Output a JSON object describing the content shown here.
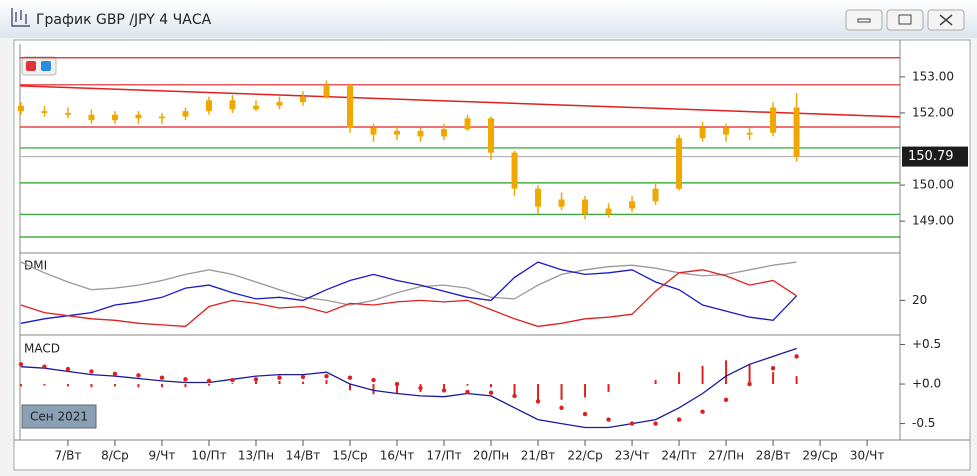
{
  "window": {
    "title": "График GBP /JPY  4 ЧАСА"
  },
  "chart_data": [
    {
      "type": "candlestick",
      "color": "#f0a800",
      "x": [
        -1,
        -0.5,
        0,
        0.5,
        1,
        1.5,
        2,
        2.5,
        3,
        3.5,
        4,
        4.5,
        5,
        5.5,
        6,
        6.5,
        7,
        7.5,
        8,
        8.5,
        9,
        9.5,
        10,
        10.5,
        11,
        11.5,
        12,
        12.5,
        13,
        13.5,
        14,
        14.5,
        15,
        15.5
      ],
      "open": [
        152.2,
        152.05,
        152.0,
        151.95,
        151.8,
        151.95,
        151.85,
        151.9,
        152.05,
        152.35,
        152.1,
        152.2,
        152.3,
        152.45,
        152.75,
        151.6,
        151.4,
        151.5,
        151.35,
        151.55,
        151.85,
        150.9,
        149.9,
        149.4,
        149.6,
        149.2,
        149.35,
        149.55,
        149.9,
        151.3,
        151.6,
        151.4,
        151.45,
        152.15
      ],
      "high": [
        152.3,
        152.2,
        152.15,
        152.1,
        152.05,
        152.05,
        152.0,
        152.15,
        152.45,
        152.5,
        152.35,
        152.45,
        152.6,
        152.9,
        152.8,
        151.7,
        151.65,
        151.6,
        151.7,
        151.95,
        151.9,
        150.95,
        150.0,
        149.8,
        149.7,
        149.5,
        149.7,
        150.1,
        151.4,
        151.75,
        151.7,
        151.6,
        152.3,
        152.55
      ],
      "low": [
        151.95,
        151.9,
        151.85,
        151.7,
        151.7,
        151.7,
        151.7,
        151.8,
        151.95,
        152.0,
        152.05,
        152.1,
        152.2,
        152.4,
        151.45,
        151.2,
        151.25,
        151.2,
        151.25,
        151.5,
        150.7,
        149.7,
        149.2,
        149.3,
        149.05,
        149.1,
        149.25,
        149.45,
        149.85,
        151.2,
        151.2,
        151.25,
        151.35,
        150.65
      ],
      "close": [
        152.05,
        152.0,
        151.95,
        151.8,
        151.95,
        151.85,
        151.9,
        152.05,
        152.35,
        152.1,
        152.2,
        152.3,
        152.45,
        152.75,
        151.6,
        151.4,
        151.5,
        151.35,
        151.55,
        151.85,
        150.9,
        149.9,
        149.4,
        149.6,
        149.2,
        149.35,
        149.55,
        149.9,
        151.3,
        151.6,
        151.4,
        151.45,
        152.15,
        150.79
      ],
      "levels": [
        {
          "value": 153.53,
          "color": "#e02020"
        },
        {
          "value": 152.78,
          "color": "#e02020"
        },
        {
          "value": 151.61,
          "color": "#e02020"
        },
        {
          "value": 151.03,
          "color": "#20a020"
        },
        {
          "value": 150.06,
          "color": "#20a020"
        },
        {
          "value": 149.19,
          "color": "#20a020"
        },
        {
          "value": 148.56,
          "color": "#20a020"
        }
      ],
      "trend_line": {
        "x": [
          -1.02,
          17.7
        ],
        "y": [
          152.75,
          151.89
        ],
        "color": "#e02020"
      },
      "current_price": 150.79,
      "xlim": [
        -1.02,
        17.7
      ],
      "ylim": [
        148.2,
        153.8
      ],
      "yticks": [
        {
          "value": 153,
          "label": "153.00"
        },
        {
          "value": 152,
          "label": "152.00"
        },
        {
          "value": 150,
          "label": "150.00"
        },
        {
          "value": 149,
          "label": "149.00"
        }
      ]
    },
    {
      "type": "line",
      "title": "DMI",
      "x": [
        -1,
        -0.5,
        0,
        0.5,
        1,
        1.5,
        2,
        2.5,
        3,
        3.5,
        4,
        4.5,
        5,
        5.5,
        6,
        6.5,
        7,
        7.5,
        8,
        8.5,
        9,
        9.5,
        10,
        10.5,
        11,
        11.5,
        12,
        12.5,
        13,
        13.5,
        14,
        14.5,
        15,
        15.5
      ],
      "series": [
        {
          "style": "line",
          "color": "#999999",
          "values": [
            45,
            38,
            32,
            27,
            28,
            30,
            33,
            37,
            40,
            37,
            32,
            27,
            22,
            20,
            17,
            20,
            25,
            29,
            30,
            28,
            22,
            21,
            30,
            37,
            40,
            42,
            43,
            41,
            38,
            36,
            37,
            40,
            43,
            45
          ]
        },
        {
          "style": "line",
          "color": "#1a1acc",
          "values": [
            5,
            8,
            10,
            12,
            17,
            19,
            22,
            28,
            30,
            25,
            21,
            22,
            20,
            27,
            33,
            37,
            33,
            30,
            26,
            22,
            20,
            35,
            45,
            40,
            37,
            38,
            40,
            32,
            27,
            17,
            13,
            9,
            7,
            23
          ]
        },
        {
          "style": "line",
          "color": "#e02020",
          "values": [
            17,
            12,
            10,
            8,
            7,
            5,
            4,
            3,
            16,
            20,
            18,
            15,
            16,
            12,
            18,
            17,
            19,
            20,
            19,
            20,
            14,
            8,
            3,
            5,
            8,
            9,
            11,
            26,
            38,
            40,
            36,
            30,
            33,
            23
          ]
        }
      ],
      "xlim": [
        -1.02,
        17.7
      ],
      "ylim": [
        0,
        49
      ],
      "yticks": [
        20
      ]
    },
    {
      "type": "line",
      "title": "MACD",
      "period_label": "Сен 2021",
      "x": [
        -1,
        -0.5,
        0,
        0.5,
        1,
        1.5,
        2,
        2.5,
        3,
        3.5,
        4,
        4.5,
        5,
        5.5,
        6,
        6.5,
        7,
        7.5,
        8,
        8.5,
        9,
        9.5,
        10,
        10.5,
        11,
        11.5,
        12,
        12.5,
        13,
        13.5,
        14,
        14.5,
        15,
        15.5
      ],
      "series": [
        {
          "style": "bars",
          "color": "#e02020",
          "values": [
            -0.03,
            -0.02,
            -0.03,
            -0.04,
            -0.03,
            -0.04,
            -0.04,
            -0.04,
            -0.02,
            0.01,
            0.04,
            0.04,
            0.03,
            0.05,
            -0.08,
            -0.13,
            -0.12,
            -0.1,
            -0.08,
            -0.02,
            -0.04,
            -0.15,
            -0.23,
            -0.2,
            -0.17,
            -0.1,
            0.0,
            0.05,
            0.15,
            0.23,
            0.3,
            0.25,
            0.15,
            0.1
          ]
        },
        {
          "style": "line",
          "color": "#1a1a99",
          "values": [
            0.22,
            0.2,
            0.16,
            0.12,
            0.1,
            0.07,
            0.04,
            0.02,
            0.02,
            0.06,
            0.1,
            0.12,
            0.12,
            0.15,
            0.0,
            -0.08,
            -0.12,
            -0.15,
            -0.16,
            -0.12,
            -0.15,
            -0.3,
            -0.45,
            -0.5,
            -0.55,
            -0.55,
            -0.5,
            -0.45,
            -0.3,
            -0.12,
            0.1,
            0.25,
            0.35,
            0.45
          ]
        },
        {
          "style": "dots",
          "color": "#e02020",
          "values": [
            0.25,
            0.22,
            0.19,
            0.16,
            0.13,
            0.11,
            0.08,
            0.06,
            0.04,
            0.05,
            0.06,
            0.08,
            0.09,
            0.1,
            0.08,
            0.05,
            0.0,
            -0.05,
            -0.08,
            -0.1,
            -0.11,
            -0.15,
            -0.22,
            -0.3,
            -0.38,
            -0.45,
            -0.5,
            -0.5,
            -0.45,
            -0.35,
            -0.2,
            0.0,
            0.2,
            0.35
          ]
        }
      ],
      "xlim": [
        -1.02,
        17.7
      ],
      "ylim": [
        -0.67,
        0.57
      ],
      "yticks": [
        {
          "value": 0.5,
          "label": "+0.5"
        },
        {
          "value": 0,
          "label": "+0.0"
        },
        {
          "value": -0.5,
          "label": "-0.5"
        }
      ],
      "xticks": [
        {
          "value": 0,
          "label": "7/Вт"
        },
        {
          "value": 1,
          "label": "8/Ср"
        },
        {
          "value": 2,
          "label": "9/Чт"
        },
        {
          "value": 3,
          "label": "10/Пт"
        },
        {
          "value": 4,
          "label": "13/Пн"
        },
        {
          "value": 5,
          "label": "14/Вт"
        },
        {
          "value": 6,
          "label": "15/Ср"
        },
        {
          "value": 7,
          "label": "16/Чт"
        },
        {
          "value": 8,
          "label": "17/Пт"
        },
        {
          "value": 9,
          "label": "20/Пн"
        },
        {
          "value": 10,
          "label": "21/Вт"
        },
        {
          "value": 11,
          "label": "22/Ср"
        },
        {
          "value": 12,
          "label": "23/Чт"
        },
        {
          "value": 13,
          "label": "24/Пт"
        },
        {
          "value": 14,
          "label": "27/Пн"
        },
        {
          "value": 15,
          "label": "28/Вт"
        },
        {
          "value": 16,
          "label": "29/Ср"
        },
        {
          "value": 17,
          "label": "30/Чт"
        }
      ]
    }
  ]
}
